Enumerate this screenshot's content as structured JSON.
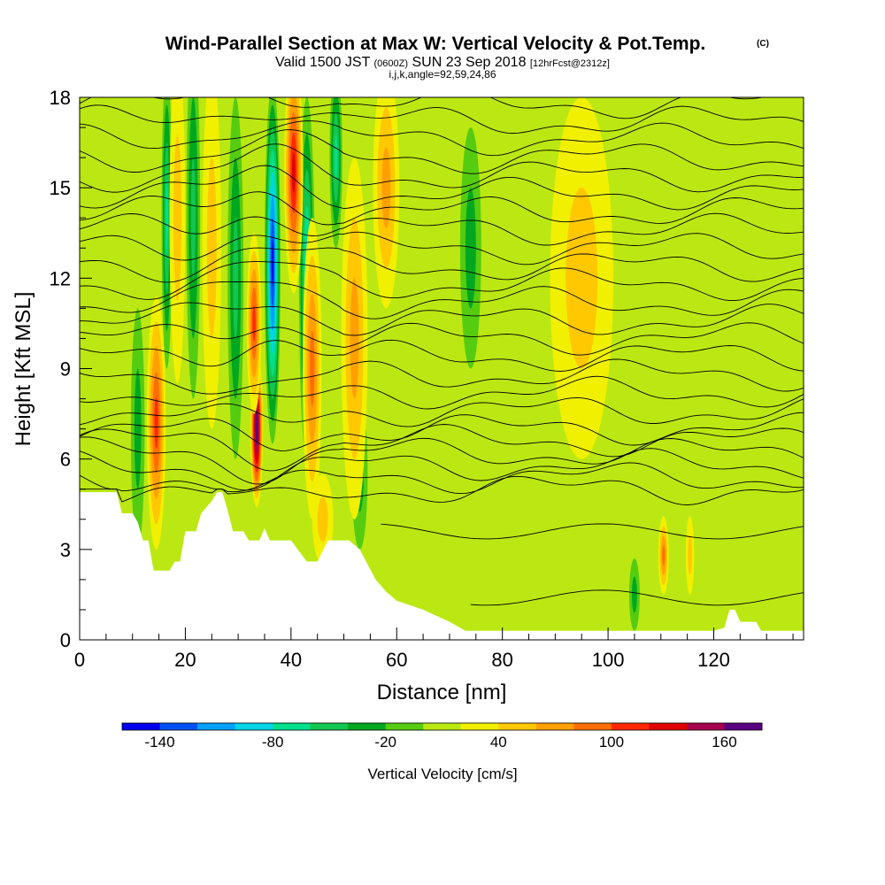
{
  "title": {
    "main": "Wind-Parallel Section at Max W: Vertical Velocity & Pot.Temp.",
    "copyright": "(C)",
    "valid_prefix": "Valid 1500 JST",
    "valid_utc": "(0600Z)",
    "valid_date": "SUN 23 Sep 2018",
    "forecast": "[12hrFcst@2312z]",
    "indices": "i,j,k,angle=92,59,24,86"
  },
  "chart_data": {
    "type": "heatmap",
    "xlabel": "Distance [nm]",
    "ylabel": "Height [Kft MSL]",
    "xlim": [
      0,
      137
    ],
    "ylim": [
      0,
      18
    ],
    "x_ticks": [
      "0",
      "20",
      "40",
      "60",
      "80",
      "100",
      "120"
    ],
    "x_tick_values": [
      0,
      20,
      40,
      60,
      80,
      100,
      120
    ],
    "y_ticks": [
      "0",
      "3",
      "6",
      "9",
      "12",
      "15",
      "18"
    ],
    "y_tick_values": [
      0,
      3,
      6,
      9,
      12,
      15,
      18
    ],
    "colorbar": {
      "label": "Vertical Velocity [cm/s]",
      "tick_labels": [
        "-140",
        "-80",
        "-20",
        "40",
        "100",
        "160"
      ],
      "tick_values": [
        -140,
        -80,
        -20,
        40,
        100,
        160
      ],
      "min": -160,
      "max": 180,
      "step": 20,
      "colors": [
        "#0000ee",
        "#0050f5",
        "#00a0ff",
        "#00d6e6",
        "#00e08c",
        "#14c650",
        "#00a820",
        "#55cc10",
        "#bbe812",
        "#f0f000",
        "#ffc800",
        "#ffa000",
        "#ff6e00",
        "#ff2800",
        "#e00000",
        "#a80050",
        "#5a0080"
      ]
    },
    "terrain_kft": [
      [
        0,
        4.9
      ],
      [
        7,
        4.9
      ],
      [
        8,
        4.2
      ],
      [
        10,
        4.2
      ],
      [
        11,
        3.9
      ],
      [
        12,
        3.3
      ],
      [
        13,
        3.3
      ],
      [
        14,
        2.3
      ],
      [
        17,
        2.3
      ],
      [
        18,
        2.6
      ],
      [
        19,
        2.6
      ],
      [
        20,
        3.6
      ],
      [
        22,
        3.6
      ],
      [
        23,
        4.2
      ],
      [
        25,
        4.6
      ],
      [
        26,
        4.9
      ],
      [
        27,
        4.9
      ],
      [
        28,
        4.3
      ],
      [
        29,
        3.6
      ],
      [
        31,
        3.6
      ],
      [
        32,
        3.3
      ],
      [
        34,
        3.3
      ],
      [
        35,
        3.7
      ],
      [
        36,
        3.3
      ],
      [
        40,
        3.3
      ],
      [
        43,
        2.6
      ],
      [
        45,
        2.6
      ],
      [
        47,
        3.3
      ],
      [
        51,
        3.3
      ],
      [
        53,
        3.0
      ],
      [
        56,
        2.0
      ],
      [
        58,
        1.6
      ],
      [
        60,
        1.3
      ],
      [
        65,
        1.0
      ],
      [
        70,
        0.6
      ],
      [
        73,
        0.3
      ],
      [
        75,
        0.3
      ],
      [
        80,
        0.3
      ],
      [
        100,
        0.3
      ],
      [
        120,
        0.3
      ],
      [
        122,
        0.4
      ],
      [
        123,
        1.0
      ],
      [
        124,
        1.0
      ],
      [
        125,
        0.6
      ],
      [
        128,
        0.6
      ],
      [
        129,
        0.3
      ],
      [
        137,
        0.3
      ]
    ],
    "updrafts": [
      {
        "x": 14.5,
        "z": 7.2,
        "peak": 95,
        "width_nm": 1.8,
        "height_kft": 4.2
      },
      {
        "x": 18.5,
        "z": 14.0,
        "peak": 45,
        "width_nm": 1.5,
        "height_kft": 5.5
      },
      {
        "x": 25.0,
        "z": 13.0,
        "peak": 35,
        "width_nm": 1.8,
        "height_kft": 6.0
      },
      {
        "x": 33.5,
        "z": 7.0,
        "peak": 180,
        "width_nm": 1.2,
        "height_kft": 2.6
      },
      {
        "x": 33.0,
        "z": 10.5,
        "peak": 90,
        "width_nm": 1.4,
        "height_kft": 3.0
      },
      {
        "x": 40.5,
        "z": 15.5,
        "peak": 120,
        "width_nm": 1.8,
        "height_kft": 4.0
      },
      {
        "x": 44.0,
        "z": 9.0,
        "peak": 70,
        "width_nm": 1.8,
        "height_kft": 5.0
      },
      {
        "x": 46.0,
        "z": 4.0,
        "peak": 45,
        "width_nm": 2.0,
        "height_kft": 1.5
      },
      {
        "x": 52.0,
        "z": 10.0,
        "peak": 50,
        "width_nm": 2.5,
        "height_kft": 6.0
      },
      {
        "x": 58.0,
        "z": 15.0,
        "peak": 60,
        "width_nm": 2.5,
        "height_kft": 4.0
      },
      {
        "x": 110.5,
        "z": 2.8,
        "peak": 70,
        "width_nm": 1.0,
        "height_kft": 1.3
      },
      {
        "x": 115.5,
        "z": 2.8,
        "peak": 45,
        "width_nm": 0.8,
        "height_kft": 1.3
      },
      {
        "x": 95.0,
        "z": 12.0,
        "peak": 25,
        "width_nm": 6.0,
        "height_kft": 6.0
      }
    ],
    "downdrafts": [
      {
        "x": 11.0,
        "z": 7.0,
        "peak": -35,
        "width_nm": 1.3,
        "height_kft": 4.0
      },
      {
        "x": 16.5,
        "z": 14.0,
        "peak": -80,
        "width_nm": 1.0,
        "height_kft": 5.0
      },
      {
        "x": 21.5,
        "z": 14.0,
        "peak": -55,
        "width_nm": 1.3,
        "height_kft": 6.0
      },
      {
        "x": 29.5,
        "z": 12.0,
        "peak": -55,
        "width_nm": 1.5,
        "height_kft": 6.0
      },
      {
        "x": 36.5,
        "z": 12.5,
        "peak": -150,
        "width_nm": 1.5,
        "height_kft": 6.0
      },
      {
        "x": 43.0,
        "z": 12.0,
        "peak": -90,
        "width_nm": 1.5,
        "height_kft": 6.0
      },
      {
        "x": 48.5,
        "z": 16.0,
        "peak": -80,
        "width_nm": 1.2,
        "height_kft": 3.0
      },
      {
        "x": 53.0,
        "z": 5.5,
        "peak": -30,
        "width_nm": 1.5,
        "height_kft": 2.5
      },
      {
        "x": 74.0,
        "z": 13.0,
        "peak": -25,
        "width_nm": 2.0,
        "height_kft": 4.0
      },
      {
        "x": 105.0,
        "z": 1.5,
        "peak": -30,
        "width_nm": 1.0,
        "height_kft": 1.2
      }
    ],
    "theta_contours": {
      "base_heights_kft": [
        17.8,
        17.2,
        16.6,
        16.0,
        15.4,
        14.8,
        14.2,
        13.6,
        13.0,
        12.4,
        11.8,
        11.2,
        10.6,
        10.0,
        9.4,
        8.8,
        8.2,
        7.6,
        7.0,
        6.6,
        6.2,
        5.8,
        5.4,
        5.0
      ],
      "deep_contours_kft": [
        {
          "base": 3.6,
          "x_start": 57
        },
        {
          "base": 1.4,
          "x_start": 74
        }
      ]
    }
  }
}
